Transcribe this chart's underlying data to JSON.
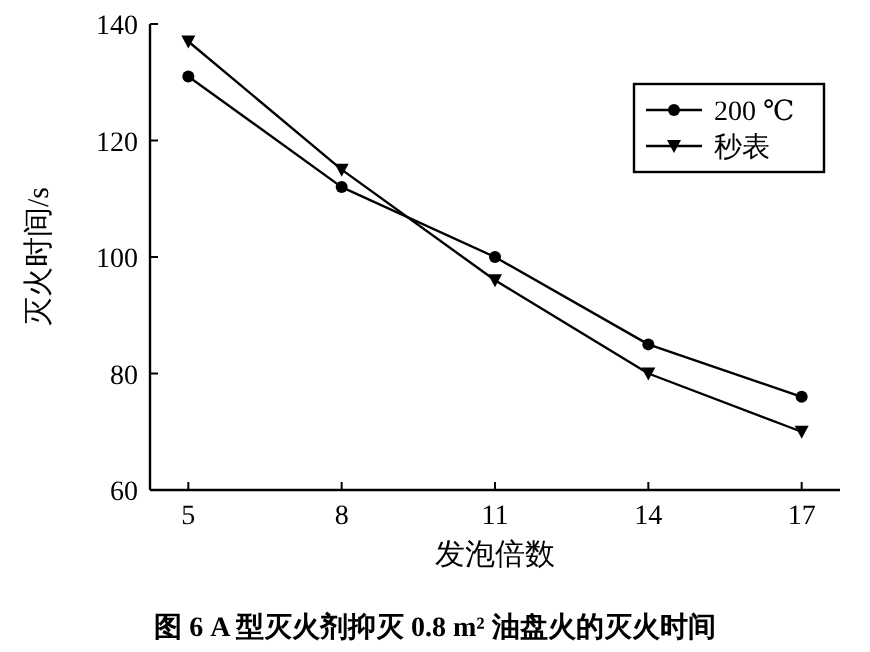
{
  "chart_data": {
    "type": "line",
    "title": "图 6  A 型灭火剂抑灭 0.8 m² 油盘火的灭火时间",
    "xlabel": "发泡倍数",
    "ylabel": "灭火时间/s",
    "categories": [
      "5",
      "8",
      "11",
      "14",
      "17"
    ],
    "ylim": [
      60,
      140
    ],
    "yticks": [
      60,
      80,
      100,
      120,
      140
    ],
    "grid": false,
    "legend": "top right",
    "series": [
      {
        "name": "200 ℃",
        "color": "#000000",
        "marker": "circle",
        "values": [
          131,
          112,
          100,
          85,
          76
        ]
      },
      {
        "name": "秒表",
        "color": "#000000",
        "marker": "triangle",
        "values": [
          137,
          115,
          96,
          80,
          70
        ]
      }
    ]
  }
}
